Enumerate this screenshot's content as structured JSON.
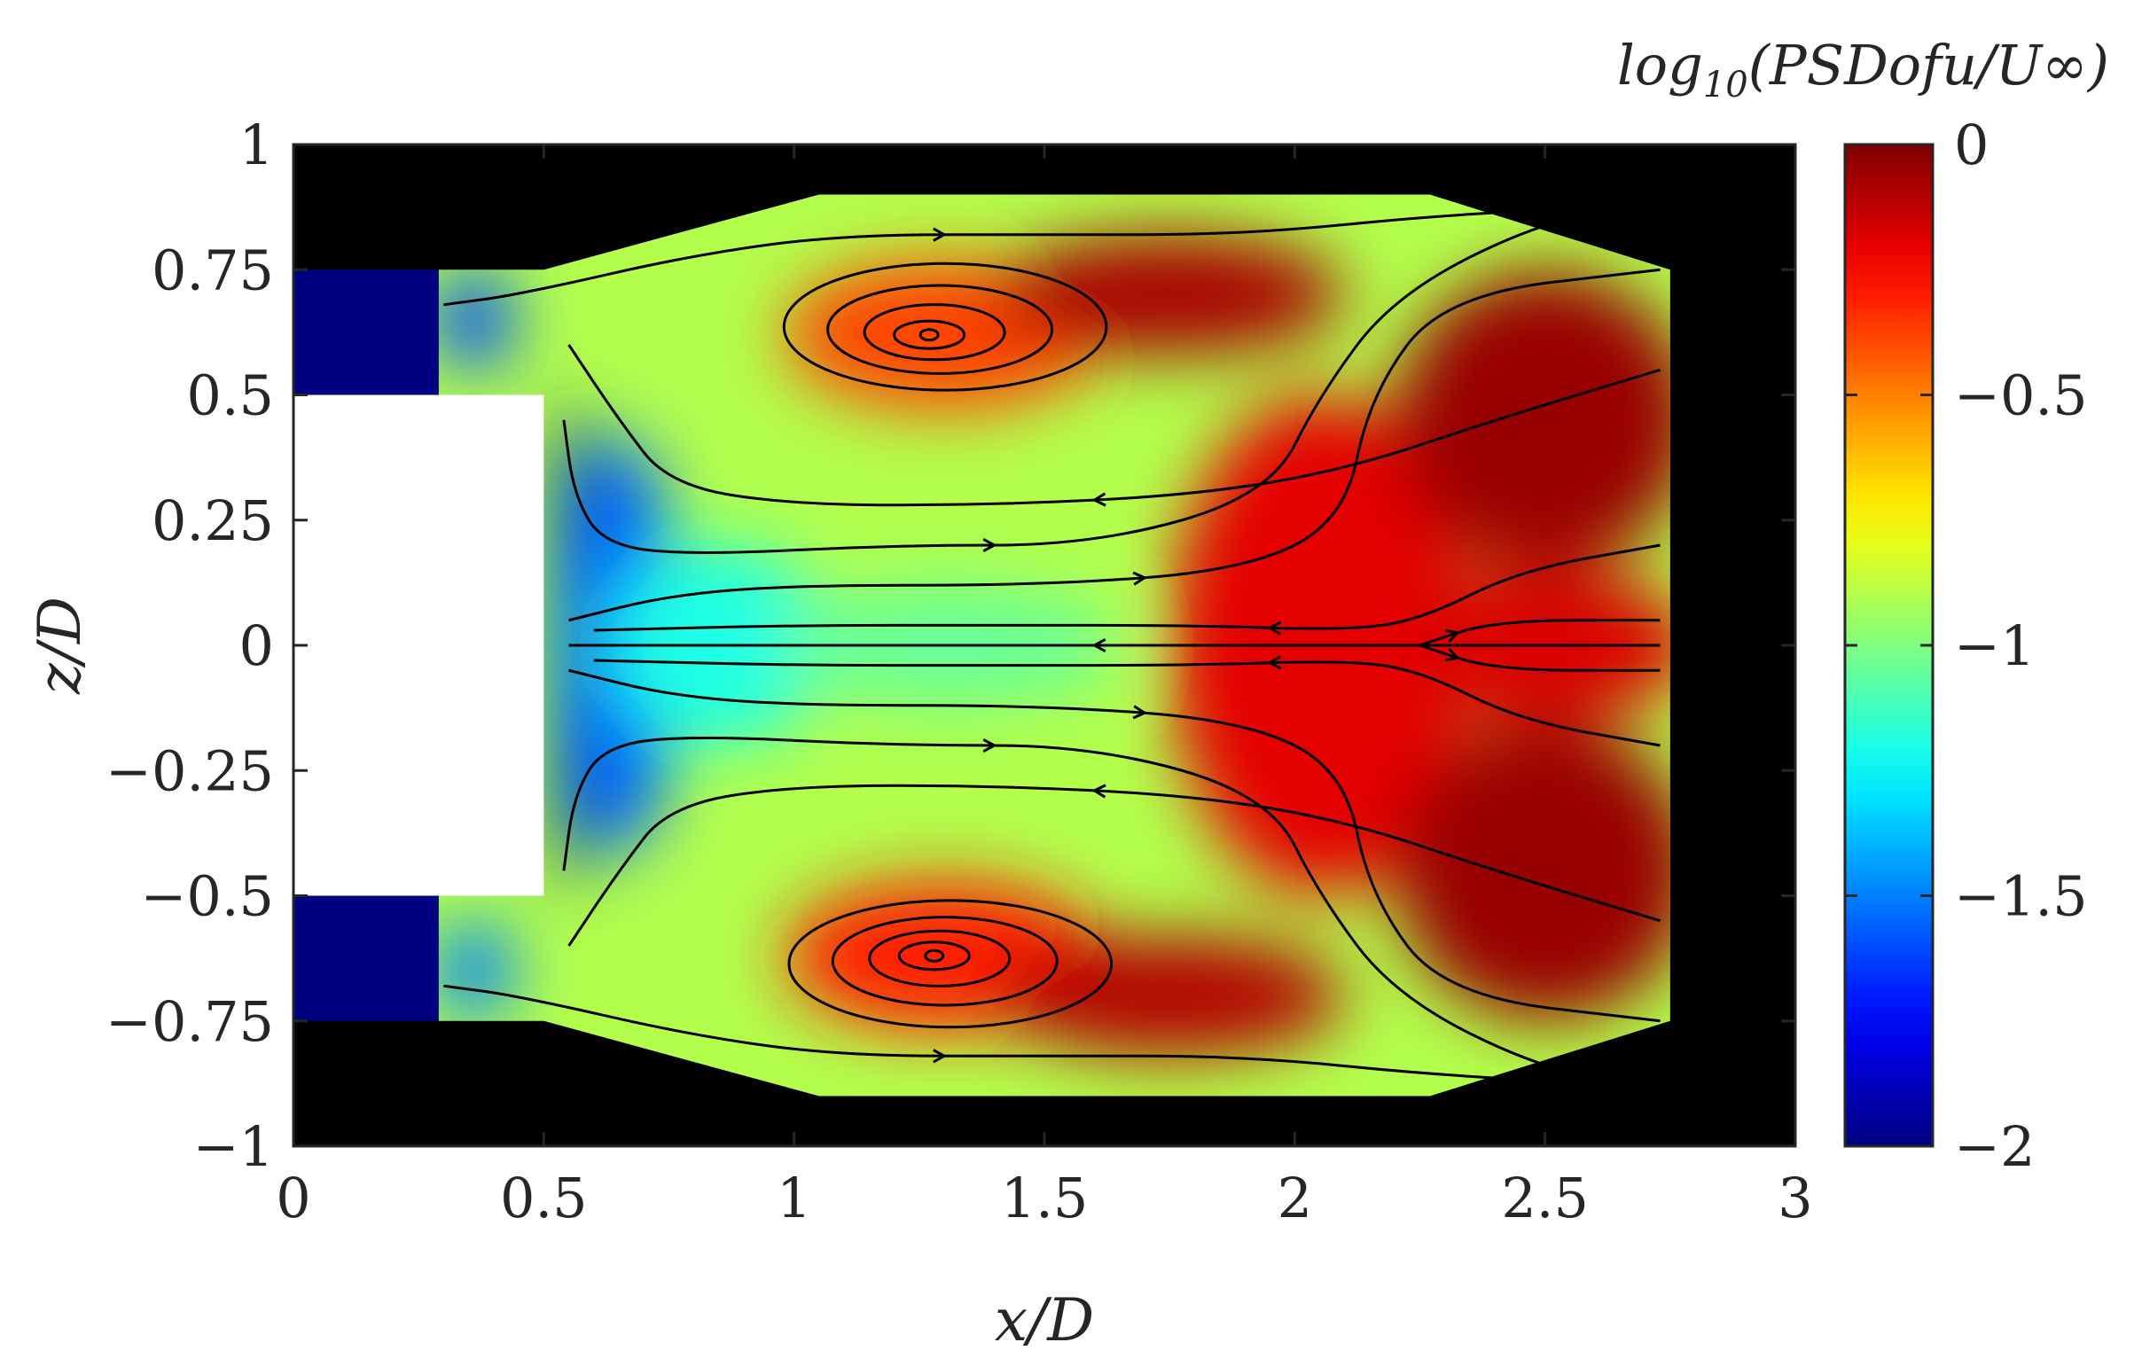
{
  "chart_data": {
    "type": "heatmap",
    "xlabel": "x/D",
    "ylabel": "z/D",
    "xlim": [
      0,
      3
    ],
    "ylim": [
      -1,
      1
    ],
    "xticks": [
      0,
      0.5,
      1,
      1.5,
      2,
      2.5,
      3
    ],
    "xtick_labels": [
      "0",
      "0.5",
      "1",
      "1.5",
      "2",
      "2.5",
      "3"
    ],
    "yticks": [
      1,
      0.75,
      0.5,
      0.25,
      0,
      -0.25,
      -0.5,
      -0.75,
      -1
    ],
    "ytick_labels": [
      "1",
      "0.75",
      "0.5",
      "0.25",
      "0",
      "−0.25",
      "−0.5",
      "−0.75",
      "−1"
    ],
    "colorbar": {
      "title": "log10(PSDofu/U∞)",
      "title_main": "log",
      "title_sub": "10",
      "title_rest": "(PSDofu/U∞)",
      "range": [
        -2,
        0
      ],
      "ticks": [
        0,
        -0.5,
        -1,
        -1.5,
        -2
      ],
      "tick_labels": [
        "0",
        "−0.5",
        "−1",
        "−1.5",
        "−2"
      ],
      "colormap": "jet"
    },
    "background_color": "#000000",
    "body_block": {
      "x": [
        0,
        0.5
      ],
      "z": [
        -0.5,
        0.5
      ],
      "color": "#ffffff"
    },
    "measurement_domain": {
      "boundary": [
        [
          0.29,
          0.75
        ],
        [
          0.5,
          0.75
        ],
        [
          1.05,
          0.9
        ],
        [
          1.3,
          0.9
        ],
        [
          2.27,
          0.9
        ],
        [
          2.75,
          0.75
        ],
        [
          2.75,
          -0.75
        ],
        [
          2.27,
          -0.9
        ],
        [
          1.3,
          -0.9
        ],
        [
          1.05,
          -0.9
        ],
        [
          0.5,
          -0.75
        ],
        [
          0.29,
          -0.75
        ]
      ]
    },
    "low_value_strips": [
      {
        "x": [
          0,
          0.29
        ],
        "z": [
          0.5,
          0.75
        ],
        "value": -2
      },
      {
        "x": [
          0,
          0.29
        ],
        "z": [
          -0.75,
          -0.5
        ],
        "value": -2
      }
    ],
    "field_blobs": [
      {
        "x": 0.55,
        "z": 0.0,
        "value": -2.0,
        "rx": 0.04,
        "rz": 0.5
      },
      {
        "x": 0.65,
        "z": 0.0,
        "value": -1.55,
        "rx": 0.12,
        "rz": 0.42
      },
      {
        "x": 0.36,
        "z": 0.65,
        "value": -1.6,
        "rx": 0.08,
        "rz": 0.1
      },
      {
        "x": 0.36,
        "z": -0.65,
        "value": -1.5,
        "rx": 0.08,
        "rz": 0.1
      },
      {
        "x": 0.85,
        "z": 0.0,
        "value": -1.2,
        "rx": 0.22,
        "rz": 0.2
      },
      {
        "x": 1.3,
        "z": 0.0,
        "value": -1.05,
        "rx": 0.35,
        "rz": 0.12
      },
      {
        "x": 1.3,
        "z": 0.62,
        "value": -0.38,
        "rx": 0.32,
        "rz": 0.15
      },
      {
        "x": 1.3,
        "z": -0.62,
        "value": -0.3,
        "rx": 0.32,
        "rz": 0.15
      },
      {
        "x": 1.75,
        "z": 0.7,
        "value": -0.08,
        "rx": 0.35,
        "rz": 0.12
      },
      {
        "x": 1.75,
        "z": -0.7,
        "value": -0.1,
        "rx": 0.35,
        "rz": 0.12
      },
      {
        "x": 2.05,
        "z": 0.0,
        "value": -0.2,
        "rx": 0.3,
        "rz": 0.5
      },
      {
        "x": 2.5,
        "z": 0.45,
        "value": -0.05,
        "rx": 0.3,
        "rz": 0.3
      },
      {
        "x": 2.5,
        "z": -0.45,
        "value": -0.05,
        "rx": 0.3,
        "rz": 0.3
      },
      {
        "x": 2.5,
        "z": 0.0,
        "value": -0.18,
        "rx": 0.3,
        "rz": 0.15
      }
    ],
    "vortex_centers": [
      {
        "x": 1.27,
        "z": 0.62,
        "rotation": "counterclockwise"
      },
      {
        "x": 1.28,
        "z": -0.62,
        "rotation": "clockwise"
      }
    ],
    "saddle_point": {
      "x": 2.25,
      "z": 0.0
    },
    "streamlines": [
      [
        [
          2.73,
          0.0
        ],
        [
          2.4,
          0.0
        ],
        [
          2.1,
          0.0
        ],
        [
          1.8,
          0.0
        ],
        [
          1.4,
          0.0
        ],
        [
          1.0,
          0.0
        ],
        [
          0.7,
          0.0
        ],
        [
          0.55,
          0.0
        ]
      ],
      [
        [
          2.73,
          0.2
        ],
        [
          2.45,
          0.15
        ],
        [
          2.25,
          0.05
        ],
        [
          2.1,
          0.03
        ],
        [
          1.8,
          0.04
        ],
        [
          1.4,
          0.04
        ],
        [
          1.0,
          0.04
        ],
        [
          0.6,
          0.03
        ]
      ],
      [
        [
          2.73,
          -0.2
        ],
        [
          2.45,
          -0.15
        ],
        [
          2.25,
          -0.05
        ],
        [
          2.1,
          -0.03
        ],
        [
          1.8,
          -0.04
        ],
        [
          1.4,
          -0.04
        ],
        [
          1.0,
          -0.04
        ],
        [
          0.6,
          -0.03
        ]
      ],
      [
        [
          2.25,
          0.0
        ],
        [
          2.4,
          0.05
        ],
        [
          2.73,
          0.05
        ]
      ],
      [
        [
          2.25,
          0.0
        ],
        [
          2.4,
          -0.05
        ],
        [
          2.73,
          -0.05
        ]
      ],
      [
        [
          0.55,
          0.05
        ],
        [
          0.75,
          0.1
        ],
        [
          1.0,
          0.12
        ],
        [
          1.5,
          0.12
        ],
        [
          1.9,
          0.15
        ],
        [
          2.1,
          0.25
        ],
        [
          2.15,
          0.5
        ],
        [
          2.3,
          0.7
        ],
        [
          2.73,
          0.75
        ]
      ],
      [
        [
          0.55,
          -0.05
        ],
        [
          0.75,
          -0.1
        ],
        [
          1.0,
          -0.12
        ],
        [
          1.5,
          -0.12
        ],
        [
          1.9,
          -0.15
        ],
        [
          2.1,
          -0.25
        ],
        [
          2.15,
          -0.5
        ],
        [
          2.3,
          -0.7
        ],
        [
          2.73,
          -0.75
        ]
      ],
      [
        [
          0.54,
          0.45
        ],
        [
          0.56,
          0.3
        ],
        [
          0.62,
          0.2
        ],
        [
          0.8,
          0.18
        ],
        [
          1.2,
          0.2
        ],
        [
          1.6,
          0.2
        ],
        [
          1.95,
          0.3
        ],
        [
          2.05,
          0.5
        ],
        [
          2.2,
          0.7
        ],
        [
          2.5,
          0.85
        ],
        [
          2.73,
          0.88
        ]
      ],
      [
        [
          0.54,
          -0.45
        ],
        [
          0.56,
          -0.3
        ],
        [
          0.62,
          -0.2
        ],
        [
          0.8,
          -0.18
        ],
        [
          1.2,
          -0.2
        ],
        [
          1.6,
          -0.2
        ],
        [
          1.95,
          -0.3
        ],
        [
          2.05,
          -0.5
        ],
        [
          2.2,
          -0.7
        ],
        [
          2.5,
          -0.85
        ],
        [
          2.73,
          -0.88
        ]
      ],
      [
        [
          0.3,
          0.68
        ],
        [
          0.45,
          0.7
        ],
        [
          0.8,
          0.78
        ],
        [
          1.1,
          0.82
        ],
        [
          1.5,
          0.82
        ],
        [
          1.9,
          0.82
        ],
        [
          2.3,
          0.86
        ],
        [
          2.73,
          0.88
        ]
      ],
      [
        [
          0.3,
          -0.68
        ],
        [
          0.45,
          -0.7
        ],
        [
          0.8,
          -0.78
        ],
        [
          1.1,
          -0.82
        ],
        [
          1.5,
          -0.82
        ],
        [
          1.9,
          -0.82
        ],
        [
          2.3,
          -0.86
        ],
        [
          2.73,
          -0.88
        ]
      ],
      [
        [
          2.73,
          0.55
        ],
        [
          2.4,
          0.45
        ],
        [
          2.1,
          0.35
        ],
        [
          1.8,
          0.3
        ],
        [
          1.4,
          0.28
        ],
        [
          1.0,
          0.28
        ],
        [
          0.75,
          0.32
        ],
        [
          0.65,
          0.45
        ],
        [
          0.55,
          0.6
        ]
      ],
      [
        [
          2.73,
          -0.55
        ],
        [
          2.4,
          -0.45
        ],
        [
          2.1,
          -0.35
        ],
        [
          1.8,
          -0.3
        ],
        [
          1.4,
          -0.28
        ],
        [
          1.0,
          -0.28
        ],
        [
          0.75,
          -0.32
        ],
        [
          0.65,
          -0.45
        ],
        [
          0.55,
          -0.6
        ]
      ]
    ]
  }
}
